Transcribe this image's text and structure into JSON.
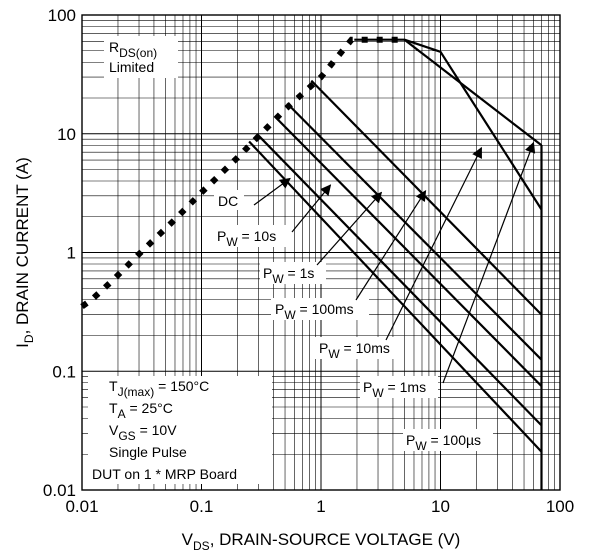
{
  "chart_data": {
    "type": "line",
    "title": "",
    "x_scale": "log",
    "y_scale": "log",
    "xlim": [
      0.01,
      100
    ],
    "ylim": [
      0.01,
      100
    ],
    "grid": true,
    "x_ticks": [
      "0.01",
      "0.1",
      "1",
      "10",
      "100"
    ],
    "y_ticks": [
      "0.01",
      "0.1",
      "1",
      "10",
      "100"
    ],
    "xlabel": {
      "main": "V",
      "sub": "DS",
      "rest": ", DRAIN-SOURCE VOLTAGE (V)"
    },
    "ylabel": {
      "main": "I",
      "sub": "D",
      "rest": ", DRAIN CURRENT (A)"
    },
    "rds_label": {
      "line1_main": "R",
      "line1_sub": "DS(on)",
      "line2": "Limited"
    },
    "conditions": [
      {
        "main": "T",
        "sub": "J(max)",
        "rest": " = 150°C"
      },
      {
        "main": "T",
        "sub": "A",
        "rest": " = 25°C"
      },
      {
        "main": "V",
        "sub": "GS",
        "rest": " = 10V"
      },
      {
        "main": "Single Pulse",
        "sub": "",
        "rest": ""
      },
      {
        "main": "DUT on 1 * MRP Board",
        "sub": "",
        "rest": ""
      }
    ],
    "limit_line": {
      "name": "RDS(on) Limited",
      "style": "dashed",
      "points": [
        [
          0.01,
          0.35
        ],
        [
          0.012,
          0.4
        ],
        [
          0.018,
          0.58
        ],
        [
          0.03,
          0.97
        ],
        [
          0.06,
          1.9
        ],
        [
          0.1,
          3.2
        ],
        [
          0.2,
          6.3
        ],
        [
          0.5,
          16
        ],
        [
          1,
          30
        ],
        [
          1.8,
          62
        ],
        [
          2,
          62
        ],
        [
          3,
          62
        ],
        [
          5,
          62
        ]
      ]
    },
    "series": [
      {
        "name": "DC",
        "x": [
          0.25,
          70
        ],
        "y": [
          8.6,
          0.021
        ]
      },
      {
        "name": "10s",
        "x": [
          0.29,
          70
        ],
        "y": [
          10,
          0.035
        ]
      },
      {
        "name": "1s",
        "x": [
          0.41,
          70
        ],
        "y": [
          14,
          0.075
        ]
      },
      {
        "name": "100ms",
        "x": [
          0.52,
          70
        ],
        "y": [
          18,
          0.125
        ]
      },
      {
        "name": "10ms",
        "x": [
          0.83,
          70
        ],
        "y": [
          28,
          0.3
        ]
      },
      {
        "name": "1ms",
        "x": [
          1.9,
          5,
          10,
          70
        ],
        "y": [
          62,
          62,
          49,
          2.3
        ]
      },
      {
        "name": "100µs",
        "x": [
          5,
          70
        ],
        "y": [
          62,
          8
        ]
      }
    ],
    "breakdown_line": {
      "x": 70,
      "y": [
        8,
        0.01
      ]
    },
    "labels": [
      {
        "main": "DC",
        "sub": "",
        "rest": "",
        "arrow_to": [
          0.55,
          4.2
        ]
      },
      {
        "main": "P",
        "sub": "W",
        "rest": " = 10s",
        "arrow_to": [
          1.2,
          3.7
        ]
      },
      {
        "main": "P",
        "sub": "W",
        "rest": " = 1s",
        "arrow_to": [
          3.2,
          3.2
        ]
      },
      {
        "main": "P",
        "sub": "W",
        "rest": " = 100ms",
        "arrow_to": [
          7.5,
          3.3
        ]
      },
      {
        "main": "P",
        "sub": "W",
        "rest": " = 10ms",
        "arrow_to": [
          22,
          7.6
        ]
      },
      {
        "main": "P",
        "sub": "W",
        "rest": " = 1ms",
        "arrow_to": [
          60,
          8.4
        ]
      },
      {
        "main": "P",
        "sub": "W",
        "rest": " = 100µs",
        "arrow_to": [
          0,
          0
        ]
      }
    ]
  }
}
